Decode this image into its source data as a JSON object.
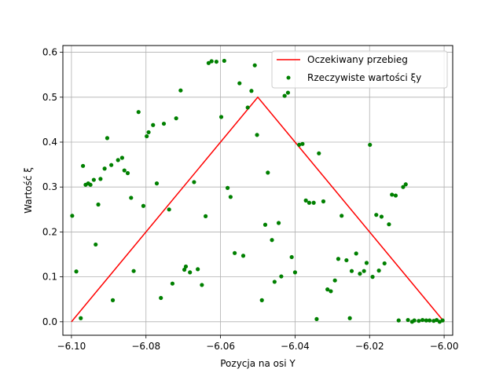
{
  "chart_data": {
    "type": "scatter",
    "title": "",
    "xlabel": "Pozycja na osi Y",
    "ylabel": "Wartość ξ",
    "xlim": [
      -6.1023,
      -5.9977
    ],
    "ylim": [
      -0.03,
      0.615
    ],
    "grid": true,
    "legend_position": "top-right",
    "x_ticks": [
      {
        "value": -6.1,
        "label": "−6.10"
      },
      {
        "value": -6.08,
        "label": "−6.08"
      },
      {
        "value": -6.06,
        "label": "−6.06"
      },
      {
        "value": -6.04,
        "label": "−6.04"
      },
      {
        "value": -6.02,
        "label": "−6.02"
      },
      {
        "value": -6.0,
        "label": "−6.00"
      }
    ],
    "y_ticks": [
      {
        "value": 0.0,
        "label": "0.0"
      },
      {
        "value": 0.1,
        "label": "0.1"
      },
      {
        "value": 0.2,
        "label": "0.2"
      },
      {
        "value": 0.3,
        "label": "0.3"
      },
      {
        "value": 0.4,
        "label": "0.4"
      },
      {
        "value": 0.5,
        "label": "0.5"
      },
      {
        "value": 0.6,
        "label": "0.6"
      }
    ],
    "series": [
      {
        "name": "Oczekiwany przebieg",
        "kind": "line",
        "color": "#ff0000",
        "x": [
          -6.1,
          -6.05,
          -6.0
        ],
        "y": [
          0.0,
          0.5,
          0.0
        ]
      },
      {
        "name": "Rzeczywiste wartości ξy",
        "kind": "scatter",
        "color": "#008000",
        "x": [
          -6.0998,
          -6.0987,
          -6.0975,
          -6.0969,
          -6.0962,
          -6.0955,
          -6.0949,
          -6.094,
          -6.0935,
          -6.0928,
          -6.0922,
          -6.0911,
          -6.0904,
          -6.0893,
          -6.0889,
          -6.0875,
          -6.0864,
          -6.0858,
          -6.0849,
          -6.084,
          -6.0833,
          -6.082,
          -6.0807,
          -6.0798,
          -6.0793,
          -6.0781,
          -6.0771,
          -6.076,
          -6.0752,
          -6.0738,
          -6.0729,
          -6.0719,
          -6.0707,
          -6.0697,
          -6.0693,
          -6.0682,
          -6.0671,
          -6.0661,
          -6.065,
          -6.064,
          -6.0632,
          -6.0624,
          -6.0611,
          -6.0598,
          -6.059,
          -6.0581,
          -6.0573,
          -6.0562,
          -6.0549,
          -6.0539,
          -6.0527,
          -6.0517,
          -6.0508,
          -6.0502,
          -6.0489,
          -6.048,
          -6.0473,
          -6.0462,
          -6.0455,
          -6.0444,
          -6.0437,
          -6.0428,
          -6.0419,
          -6.0409,
          -6.04,
          -6.0389,
          -6.038,
          -6.0371,
          -6.0362,
          -6.035,
          -6.0342,
          -6.0336,
          -6.0324,
          -6.0313,
          -6.0304,
          -6.0293,
          -6.0284,
          -6.0275,
          -6.0262,
          -6.0253,
          -6.0248,
          -6.0236,
          -6.0226,
          -6.0215,
          -6.0208,
          -6.0199,
          -6.0192,
          -6.0182,
          -6.0175,
          -6.0168,
          -6.016,
          -6.0148,
          -6.014,
          -6.013,
          -6.0122,
          -6.011,
          -6.0103,
          -6.0097,
          -6.0086,
          -6.008,
          -6.0068,
          -6.0058,
          -6.0048,
          -6.0039,
          -6.0028,
          -6.002,
          -6.0012,
          -6.0004
        ],
        "y": [
          0.236,
          0.112,
          0.008,
          0.347,
          0.305,
          0.308,
          0.305,
          0.316,
          0.172,
          0.261,
          0.318,
          0.341,
          0.409,
          0.349,
          0.048,
          0.36,
          0.365,
          0.337,
          0.331,
          0.276,
          0.113,
          0.467,
          0.258,
          0.413,
          0.422,
          0.438,
          0.308,
          0.053,
          0.441,
          0.25,
          0.085,
          0.453,
          0.515,
          0.116,
          0.123,
          0.11,
          0.311,
          0.117,
          0.082,
          0.235,
          0.576,
          0.58,
          0.579,
          0.456,
          0.581,
          0.298,
          0.278,
          0.153,
          0.531,
          0.147,
          0.477,
          0.514,
          0.571,
          0.416,
          0.048,
          0.216,
          0.332,
          0.182,
          0.089,
          0.22,
          0.101,
          0.503,
          0.51,
          0.144,
          0.11,
          0.394,
          0.396,
          0.27,
          0.265,
          0.265,
          0.006,
          0.375,
          0.268,
          0.072,
          0.068,
          0.092,
          0.14,
          0.236,
          0.137,
          0.008,
          0.113,
          0.152,
          0.107,
          0.113,
          0.131,
          0.394,
          0.1,
          0.238,
          0.114,
          0.234,
          0.13,
          0.217,
          0.283,
          0.281,
          0.003,
          0.3,
          0.306,
          0.004,
          0.0,
          0.003,
          0.002,
          0.004,
          0.003,
          0.003,
          0.002,
          0.004,
          0.0,
          0.003
        ]
      }
    ]
  }
}
